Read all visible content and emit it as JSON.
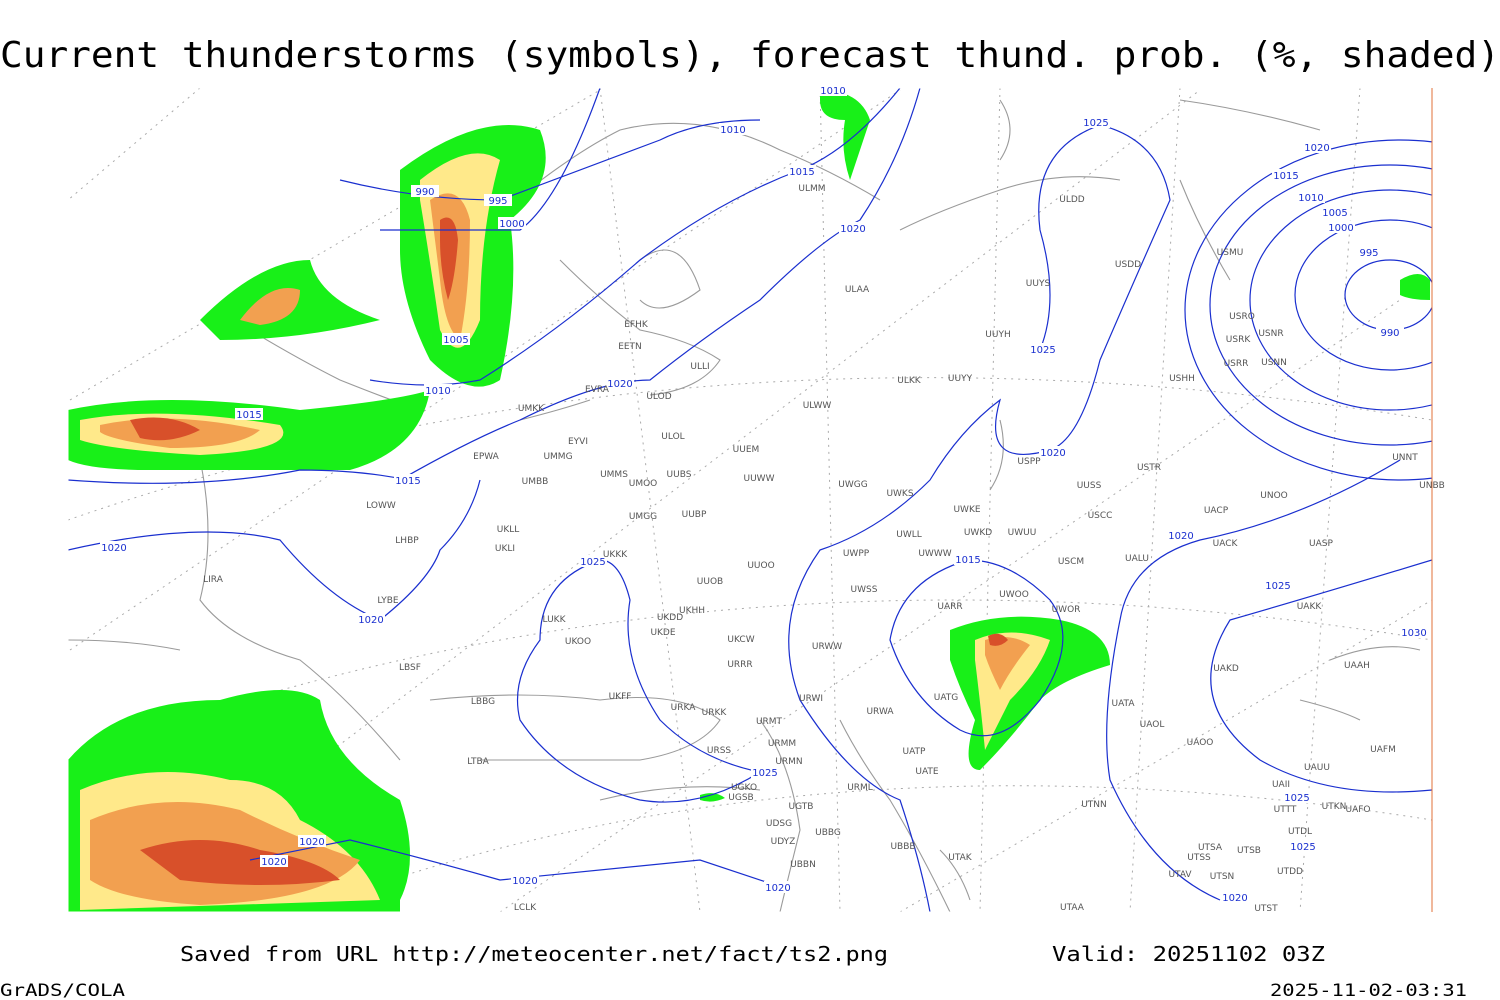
{
  "header": {
    "title": "Current thunderstorms (symbols), forecast thund. prob. (%, shaded)"
  },
  "isobar_labels": [
    "1010",
    "1010",
    "1015",
    "990",
    "995",
    "1000",
    "1020",
    "1025",
    "1020",
    "1015",
    "1010",
    "1005",
    "1000",
    "995",
    "990",
    "1025",
    "1005",
    "1010",
    "1020",
    "1015",
    "1015",
    "1020",
    "1020",
    "1025",
    "1015",
    "1020",
    "1025",
    "1020",
    "1030",
    "1025",
    "1025",
    "1020",
    "1020",
    "1025",
    "1020",
    "1020",
    "1020"
  ],
  "stations": [
    "ULMM",
    "ULDD",
    "USDD",
    "USMU",
    "UUYS",
    "ULAA",
    "UUYH",
    "USRO",
    "USRK",
    "USNR",
    "USRR",
    "USNN",
    "USHH",
    "ULKK",
    "UUYY",
    "EFHK",
    "EETN",
    "ULLI",
    "EVRA",
    "ULOD",
    "UMKK",
    "ULWW",
    "ULOL",
    "EYVI",
    "UUEM",
    "EPWA",
    "UMMG",
    "UMMS",
    "UMOO",
    "UUBS",
    "UUWW",
    "UWGG",
    "UWKS",
    "UMBB",
    "UUSS",
    "USTR",
    "USPP",
    "UWKE",
    "UWKD",
    "UWUU",
    "USCC",
    "UMGG",
    "UUBP",
    "LOWW",
    "UKLL",
    "UKLI",
    "LHBP",
    "UKKK",
    "UUOO",
    "UWPP",
    "UWLL",
    "UWWW",
    "USCM",
    "UALU",
    "UACP",
    "UACK",
    "UASP",
    "UNOO",
    "UNBB",
    "UNNT",
    "LIRA",
    "UUOB",
    "LYBE",
    "UKHH",
    "UKDD",
    "LUKK",
    "UWSS",
    "UARR",
    "UWOO",
    "UWOR",
    "UAKK",
    "UKOO",
    "UKDE",
    "UKCW",
    "URWW",
    "LBSF",
    "URRR",
    "UAKD",
    "UAAH",
    "UKFF",
    "LBBG",
    "URWI",
    "UATG",
    "UATA",
    "URKA",
    "URKK",
    "URMT",
    "URWA",
    "UAOL",
    "UAOO",
    "URSS",
    "URMM",
    "UATP",
    "UATE",
    "URMN",
    "LTBA",
    "UGKO",
    "UGSB",
    "UGTB",
    "URML",
    "UTNN",
    "UAFM",
    "UAUU",
    "UAII",
    "UTTT",
    "UTKN",
    "UAFO",
    "UDSG",
    "UBBG",
    "UTDL",
    "UDYZ",
    "UBBB",
    "UTSA",
    "UTSB",
    "UTAK",
    "UBBN",
    "UTSS",
    "UTAV",
    "UTSN",
    "UTDD",
    "LCLK",
    "UTAA",
    "UTST"
  ],
  "footer": {
    "source": "Saved from URL http://meteocenter.net/fact/ts2.png",
    "valid": "Valid: 20251102 03Z",
    "software": "GrADS/COLA",
    "timestamp": "2025-11-02-03:31"
  }
}
